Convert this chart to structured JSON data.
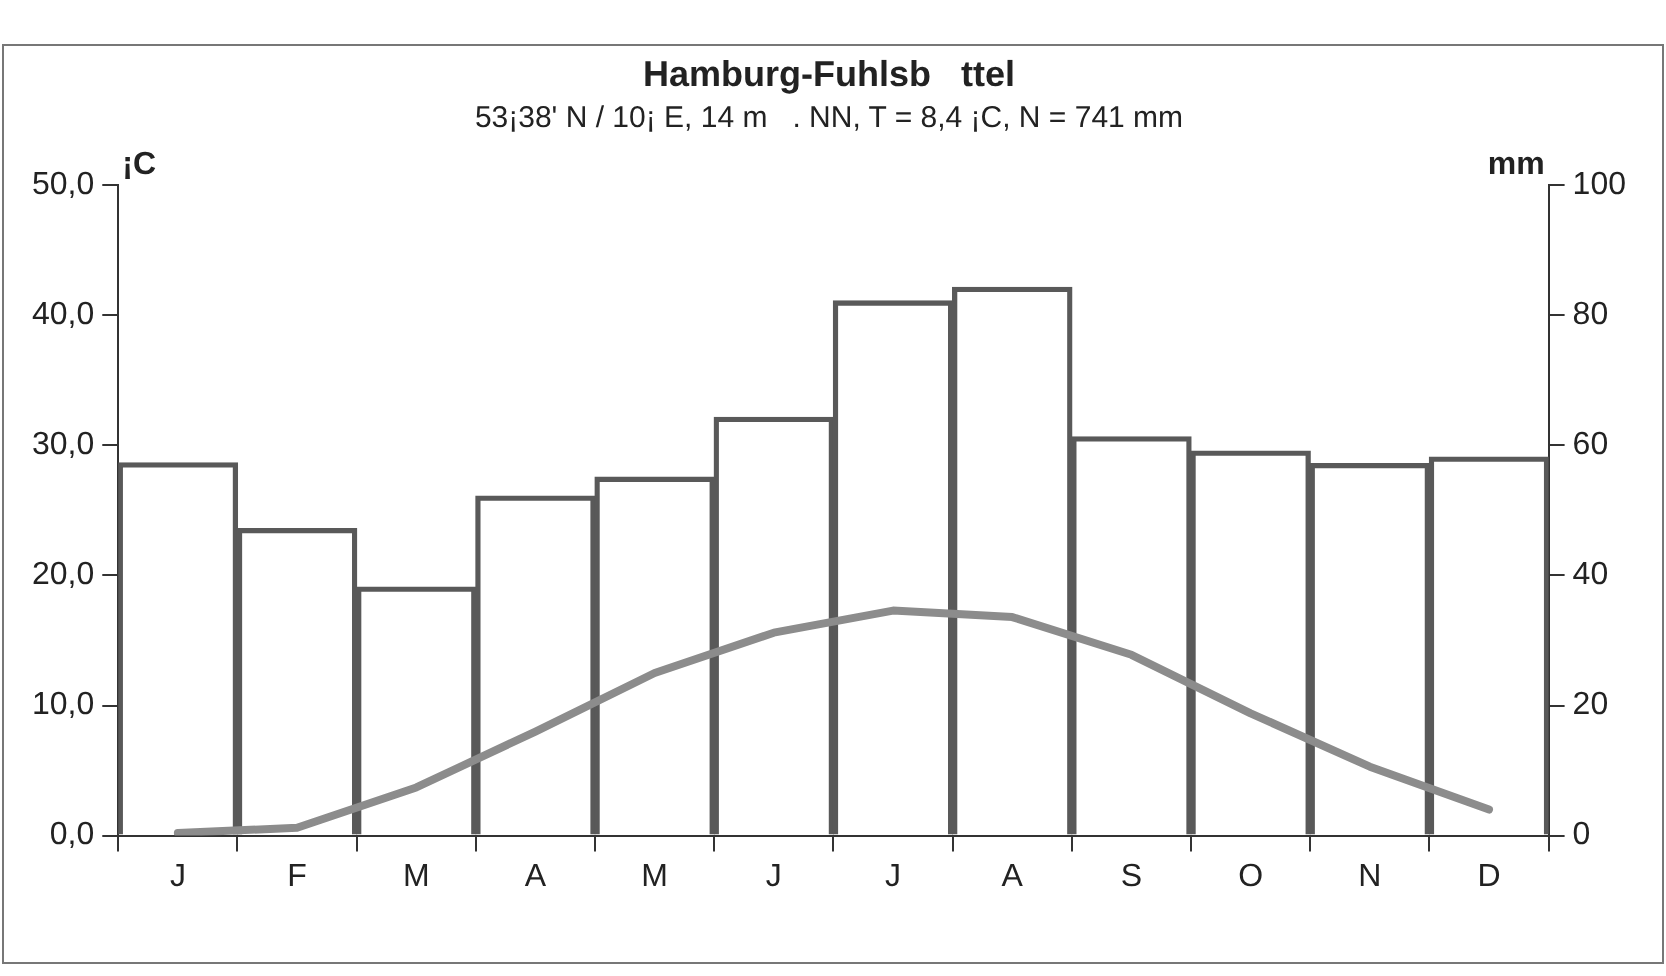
{
  "chart_data": {
    "type": "bar",
    "title": "Hamburg-Fuhlsb   ttel",
    "subtitle": "53¡38' N / 10¡ E, 14 m   . NN, T = 8,4 ¡C, N = 741 mm",
    "ylabel": "¡C",
    "y2label": "mm",
    "categories": [
      "J",
      "F",
      "M",
      "A",
      "M",
      "J",
      "J",
      "A",
      "S",
      "O",
      "N",
      "D"
    ],
    "series": [
      {
        "axis": "y2",
        "color": "#595959",
        "values": [
          57.3,
          47.2,
          38.2,
          52.2,
          55.1,
          64.3,
          82.2,
          84.3,
          61.3,
          59.1,
          57.2,
          58.2
        ]
      },
      {
        "type": "line",
        "axis": "y",
        "color": "#8c8c8c",
        "values": [
          0.2,
          0.6,
          3.7,
          8.0,
          12.5,
          15.6,
          17.3,
          16.8,
          13.9,
          9.4,
          5.3,
          2.0
        ]
      }
    ],
    "ylim": [
      0,
      50
    ],
    "yticks": [
      {
        "value": 0,
        "label": "0,0"
      },
      {
        "value": 10,
        "label": "10,0"
      },
      {
        "value": 20,
        "label": "20,0"
      },
      {
        "value": 30,
        "label": "30,0"
      },
      {
        "value": 40,
        "label": "40,0"
      },
      {
        "value": 50,
        "label": "50,0"
      }
    ],
    "y2lim": [
      0,
      100
    ],
    "y2ticks": [
      0,
      20,
      40,
      60,
      80,
      100
    ],
    "grid": false,
    "legend": false
  }
}
